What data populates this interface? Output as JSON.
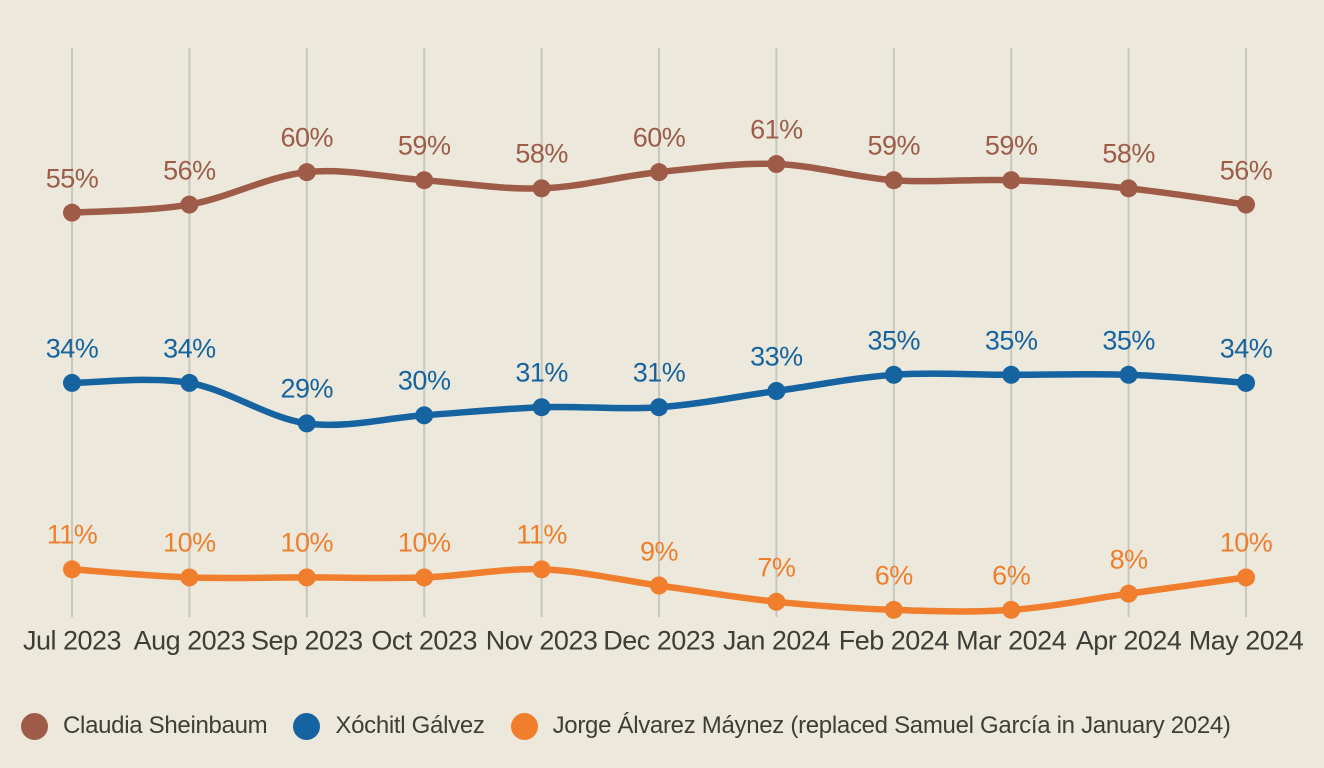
{
  "colors": {
    "background": "#ECE9DC",
    "gridline": "#C8C7BD",
    "axis_text": "#3E3D38"
  },
  "chart_data": {
    "type": "line",
    "title": "",
    "xlabel": "",
    "ylabel": "",
    "value_suffix": "%",
    "ylim": [
      0,
      70
    ],
    "grid": "vertical-only",
    "legend_position": "bottom-left",
    "point_labels": "above-each-point",
    "categories": [
      "Jul 2023",
      "Aug 2023",
      "Sep 2023",
      "Oct 2023",
      "Nov 2023",
      "Dec 2023",
      "Jan 2024",
      "Feb 2024",
      "Mar 2024",
      "Apr 2024",
      "May 2024"
    ],
    "series": [
      {
        "name": "Claudia Sheinbaum",
        "color": "#9E5C48",
        "values": [
          55,
          56,
          60,
          59,
          58,
          60,
          61,
          59,
          59,
          58,
          56
        ]
      },
      {
        "name": "Xóchitl Gálvez",
        "color": "#1563A0",
        "values": [
          34,
          34,
          29,
          30,
          31,
          31,
          33,
          35,
          35,
          35,
          34
        ]
      },
      {
        "name": "Jorge Álvarez Máynez (replaced Samuel García in January 2024)",
        "color": "#F07E2D",
        "values": [
          11,
          10,
          10,
          10,
          11,
          9,
          7,
          6,
          6,
          8,
          10
        ]
      }
    ]
  }
}
